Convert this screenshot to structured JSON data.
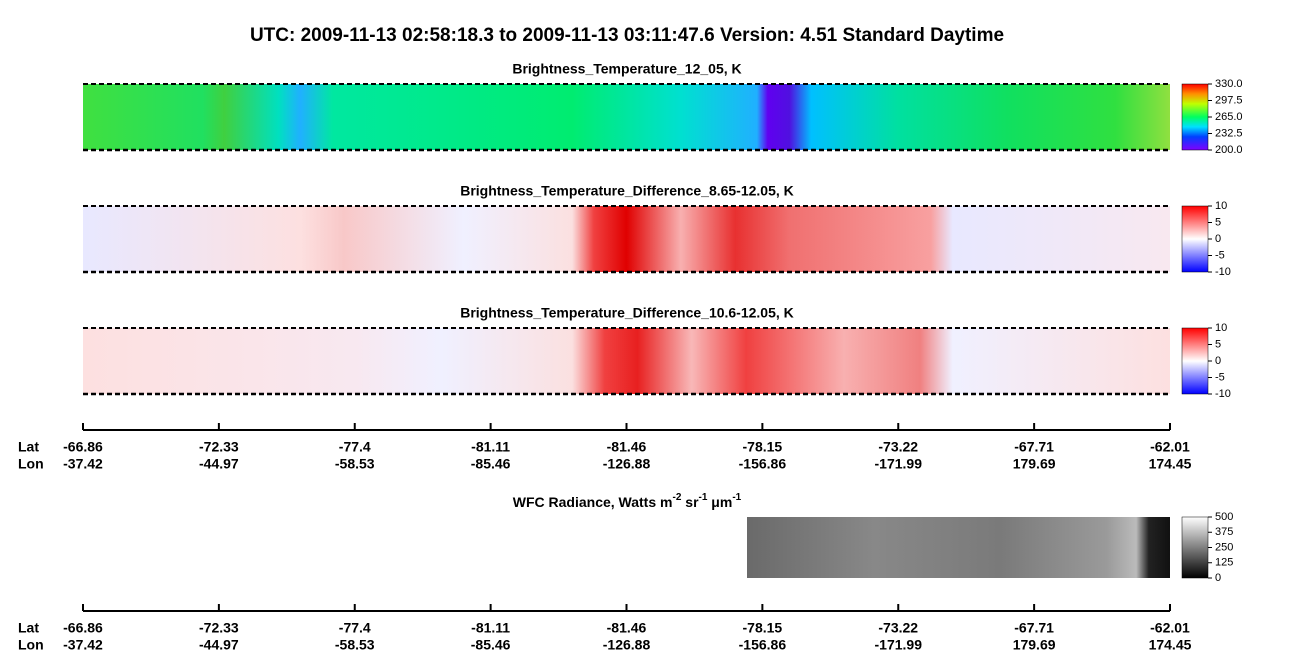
{
  "title": "UTC:  2009-11-13   02:58:18.3  to  2009-11-13   03:11:47.6    Version: 4.51  Standard Daytime",
  "panels": [
    {
      "title": "Brightness_Temperature_12_05, K",
      "clim": [
        200,
        330
      ],
      "ticks": [
        {
          "value": 330,
          "label": "330.0"
        },
        {
          "value": 297.5,
          "label": "297.5"
        },
        {
          "value": 265,
          "label": "265.0"
        },
        {
          "value": 232.5,
          "label": "232.5"
        },
        {
          "value": 200,
          "label": "200.0"
        }
      ]
    },
    {
      "title": "Brightness_Temperature_Difference_8.65-12.05, K",
      "clim": [
        -10,
        10
      ],
      "ticks": [
        10,
        5,
        0,
        -5,
        -10
      ]
    },
    {
      "title": "Brightness_Temperature_Difference_10.6-12.05, K",
      "clim": [
        -10,
        10
      ],
      "ticks": [
        10,
        5,
        0,
        -5,
        -10
      ]
    },
    {
      "title_parts": [
        "WFC Radiance, Watts m",
        "-2",
        " sr",
        "-1",
        " μm",
        "-1"
      ],
      "clim": [
        0,
        500
      ],
      "ticks": [
        500,
        375,
        250,
        125,
        0
      ]
    }
  ],
  "axis": {
    "lat_label": "Lat",
    "lon_label": "Lon",
    "lat": [
      -66.86,
      -72.33,
      -77.4,
      -81.11,
      -81.46,
      -78.15,
      -73.22,
      -67.71,
      -62.01
    ],
    "lon": [
      -37.42,
      -44.97,
      -58.53,
      -85.46,
      -126.88,
      -156.86,
      -171.99,
      179.69,
      174.45
    ]
  }
}
